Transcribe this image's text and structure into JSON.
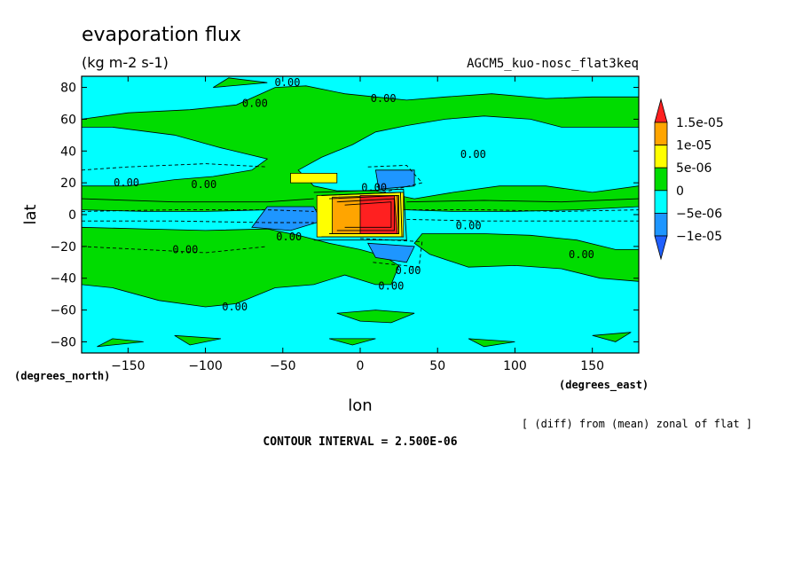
{
  "chart_data": {
    "type": "contour",
    "title": "evaporation flux",
    "units": "(kg m-2 s-1)",
    "experiment": "AGCM5_kuo-nosc_flat3keq",
    "xlabel": "lon",
    "ylabel": "lat",
    "xunits": "(degrees_east)",
    "yunits": "(degrees_north)",
    "xlim": [
      -180,
      180
    ],
    "ylim": [
      -87,
      87
    ],
    "xticks": [
      -150,
      -100,
      -50,
      0,
      50,
      100,
      150
    ],
    "xtick_labels": [
      "−150",
      "−100",
      "−50",
      "0",
      "50",
      "100",
      "150"
    ],
    "yticks": [
      -80,
      -60,
      -40,
      -20,
      0,
      20,
      40,
      60,
      80
    ],
    "ytick_labels": [
      "−80",
      "−60",
      "−40",
      "−20",
      "0",
      "20",
      "40",
      "60",
      "80"
    ],
    "note": "[ (diff) from (mean) zonal of flat ]",
    "contour_interval": "CONTOUR INTERVAL = 2.500E-06",
    "colorbar": {
      "labels": [
        "1.5e-05",
        "1e-05",
        "5e-06",
        "0",
        "−5e-06",
        "−1e-05"
      ],
      "colors": [
        "#ff2020",
        "#ffa500",
        "#ffff00",
        "#00dc00",
        "#00ffff",
        "#1e96ff",
        "#2060ff"
      ]
    },
    "contour_labels": [
      {
        "text": "0.00",
        "lon": -47,
        "lat": 83
      },
      {
        "text": "0.00",
        "lon": -68,
        "lat": 70
      },
      {
        "text": "0.00",
        "lon": 15,
        "lat": 73
      },
      {
        "text": "0.00",
        "lon": 73,
        "lat": 38
      },
      {
        "text": "0.00",
        "lon": -151,
        "lat": 20
      },
      {
        "text": "0.00",
        "lon": -101,
        "lat": 19
      },
      {
        "text": "0.00",
        "lon": 9,
        "lat": 17
      },
      {
        "text": "0.00",
        "lon": 70,
        "lat": -7
      },
      {
        "text": "0.00",
        "lon": -46,
        "lat": -14
      },
      {
        "text": "0.00",
        "lon": -113,
        "lat": -22
      },
      {
        "text": "0.00",
        "lon": 31,
        "lat": -35
      },
      {
        "text": "0.00",
        "lon": 20,
        "lat": -45
      },
      {
        "text": "0.00",
        "lon": 143,
        "lat": -25
      },
      {
        "text": "0.00",
        "lon": -81,
        "lat": -58
      }
    ],
    "regions": [
      {
        "level": "positive",
        "color": "#00dc00",
        "path": [
          [
            -180,
            60
          ],
          [
            -150,
            64
          ],
          [
            -110,
            66
          ],
          [
            -80,
            69
          ],
          [
            -55,
            80
          ],
          [
            -35,
            81
          ],
          [
            -10,
            76
          ],
          [
            10,
            74
          ],
          [
            30,
            72
          ],
          [
            55,
            74
          ],
          [
            85,
            76
          ],
          [
            120,
            73
          ],
          [
            150,
            74
          ],
          [
            180,
            74
          ],
          [
            180,
            55
          ],
          [
            130,
            55
          ],
          [
            110,
            60
          ],
          [
            80,
            62
          ],
          [
            55,
            60
          ],
          [
            30,
            56
          ],
          [
            10,
            52
          ],
          [
            -5,
            44
          ],
          [
            -25,
            36
          ],
          [
            -40,
            28
          ],
          [
            -30,
            18
          ],
          [
            -15,
            15
          ],
          [
            10,
            15
          ],
          [
            35,
            10
          ],
          [
            60,
            14
          ],
          [
            90,
            18
          ],
          [
            120,
            18
          ],
          [
            150,
            14
          ],
          [
            180,
            18
          ],
          [
            180,
            5
          ],
          [
            140,
            3
          ],
          [
            100,
            2
          ],
          [
            60,
            2
          ],
          [
            30,
            3
          ],
          [
            -25,
            3
          ],
          [
            -60,
            3
          ],
          [
            -100,
            2
          ],
          [
            -140,
            2
          ],
          [
            -180,
            3
          ],
          [
            -180,
            18
          ],
          [
            -150,
            18
          ],
          [
            -120,
            22
          ],
          [
            -95,
            24
          ],
          [
            -70,
            28
          ],
          [
            -60,
            35
          ],
          [
            -90,
            42
          ],
          [
            -120,
            50
          ],
          [
            -160,
            55
          ],
          [
            -180,
            55
          ]
        ]
      },
      {
        "level": "positive",
        "color": "#00dc00",
        "path": [
          [
            -180,
            -8
          ],
          [
            -140,
            -9
          ],
          [
            -100,
            -10
          ],
          [
            -60,
            -9
          ],
          [
            -40,
            -13
          ],
          [
            -20,
            -18
          ],
          [
            0,
            -22
          ],
          [
            15,
            -26
          ],
          [
            25,
            -32
          ],
          [
            20,
            -44
          ],
          [
            10,
            -44
          ],
          [
            -10,
            -38
          ],
          [
            -30,
            -44
          ],
          [
            -55,
            -46
          ],
          [
            -80,
            -56
          ],
          [
            -100,
            -58
          ],
          [
            -130,
            -54
          ],
          [
            -160,
            -46
          ],
          [
            -180,
            -44
          ]
        ]
      },
      {
        "level": "positive",
        "color": "#00dc00",
        "path": [
          [
            40,
            -12
          ],
          [
            80,
            -12
          ],
          [
            110,
            -13
          ],
          [
            140,
            -16
          ],
          [
            165,
            -22
          ],
          [
            180,
            -22
          ],
          [
            180,
            -42
          ],
          [
            155,
            -40
          ],
          [
            130,
            -34
          ],
          [
            100,
            -32
          ],
          [
            70,
            -33
          ],
          [
            45,
            -25
          ],
          [
            35,
            -18
          ]
        ]
      },
      {
        "level": "positive",
        "color": "#00dc00",
        "path": [
          [
            -15,
            -62
          ],
          [
            10,
            -60
          ],
          [
            35,
            -62
          ],
          [
            20,
            -68
          ],
          [
            0,
            -67
          ]
        ]
      },
      {
        "level": "positive",
        "color": "#00dc00",
        "path": [
          [
            -160,
            -78
          ],
          [
            -140,
            -80
          ],
          [
            -170,
            -83
          ]
        ]
      },
      {
        "level": "positive",
        "color": "#00dc00",
        "path": [
          [
            -120,
            -76
          ],
          [
            -90,
            -78
          ],
          [
            -110,
            -82
          ]
        ]
      },
      {
        "level": "positive",
        "color": "#00dc00",
        "path": [
          [
            -20,
            -78
          ],
          [
            10,
            -78
          ],
          [
            -5,
            -82
          ]
        ]
      },
      {
        "level": "positive",
        "color": "#00dc00",
        "path": [
          [
            70,
            -78
          ],
          [
            100,
            -80
          ],
          [
            80,
            -83
          ]
        ]
      },
      {
        "level": "positive",
        "color": "#00dc00",
        "path": [
          [
            150,
            -76
          ],
          [
            175,
            -74
          ],
          [
            165,
            -80
          ]
        ]
      },
      {
        "level": "positive",
        "color": "#00dc00",
        "path": [
          [
            -95,
            80
          ],
          [
            -60,
            83
          ],
          [
            -85,
            86
          ]
        ]
      },
      {
        "level": "negative",
        "color": "#1e96ff",
        "path": [
          [
            -60,
            5
          ],
          [
            -30,
            5
          ],
          [
            -25,
            -4
          ],
          [
            -45,
            -10
          ],
          [
            -70,
            -8
          ]
        ]
      },
      {
        "level": "negative",
        "color": "#1e96ff",
        "path": [
          [
            10,
            28
          ],
          [
            35,
            28
          ],
          [
            35,
            18
          ],
          [
            12,
            16
          ]
        ]
      },
      {
        "level": "negative",
        "color": "#1e96ff",
        "path": [
          [
            5,
            -18
          ],
          [
            35,
            -20
          ],
          [
            30,
            -30
          ],
          [
            10,
            -27
          ]
        ]
      },
      {
        "level": "5e-06",
        "color": "#ffff00",
        "path": [
          [
            -45,
            26
          ],
          [
            -15,
            26
          ],
          [
            -15,
            20
          ],
          [
            -45,
            20
          ]
        ]
      },
      {
        "level": "5e-06",
        "color": "#ffff00",
        "path": [
          [
            -28,
            12
          ],
          [
            28,
            14
          ],
          [
            28,
            -14
          ],
          [
            -28,
            -14
          ]
        ]
      },
      {
        "level": "1e-05",
        "color": "#ffa500",
        "path": [
          [
            -18,
            11
          ],
          [
            25,
            12
          ],
          [
            25,
            -12
          ],
          [
            -18,
            -12
          ]
        ]
      },
      {
        "level": "1.5e-05",
        "color": "#ff2020",
        "path": [
          [
            0,
            12
          ],
          [
            22,
            12
          ],
          [
            24,
            -12
          ],
          [
            0,
            -12
          ]
        ]
      }
    ],
    "contour_lines": [
      {
        "style": "dashed",
        "path": [
          [
            -180,
            28
          ],
          [
            -150,
            30
          ],
          [
            -100,
            32
          ],
          [
            -60,
            30
          ]
        ]
      },
      {
        "style": "dashed",
        "path": [
          [
            -180,
            -20
          ],
          [
            -140,
            -22
          ],
          [
            -100,
            -24
          ],
          [
            -60,
            -20
          ]
        ]
      },
      {
        "style": "dashed",
        "path": [
          [
            -180,
            2
          ],
          [
            -120,
            3
          ],
          [
            -60,
            3
          ],
          [
            -30,
            2
          ]
        ]
      },
      {
        "style": "dashed",
        "path": [
          [
            -180,
            -4
          ],
          [
            -120,
            -4
          ],
          [
            -60,
            -5
          ],
          [
            -30,
            -5
          ]
        ]
      },
      {
        "style": "dashed",
        "path": [
          [
            30,
            -3
          ],
          [
            80,
            -4
          ],
          [
            130,
            -4
          ],
          [
            180,
            -4
          ]
        ]
      },
      {
        "style": "dashed",
        "path": [
          [
            30,
            3
          ],
          [
            80,
            3
          ],
          [
            130,
            2
          ],
          [
            180,
            3
          ]
        ]
      },
      {
        "style": "dashed",
        "path": [
          [
            5,
            30
          ],
          [
            30,
            31
          ],
          [
            40,
            20
          ],
          [
            15,
            14
          ]
        ]
      },
      {
        "style": "dashed",
        "path": [
          [
            0,
            -15
          ],
          [
            40,
            -17
          ],
          [
            38,
            -33
          ],
          [
            8,
            -30
          ]
        ]
      },
      {
        "style": "solid",
        "path": [
          [
            -30,
            14
          ],
          [
            28,
            16
          ],
          [
            30,
            -16
          ],
          [
            -30,
            -16
          ]
        ]
      },
      {
        "style": "solid",
        "path": [
          [
            -25,
            12
          ],
          [
            26,
            14
          ],
          [
            27,
            -14
          ],
          [
            -25,
            -14
          ]
        ]
      },
      {
        "style": "solid",
        "path": [
          [
            -20,
            10
          ],
          [
            24,
            12
          ],
          [
            25,
            -12
          ],
          [
            -20,
            -12
          ]
        ]
      },
      {
        "style": "solid",
        "path": [
          [
            -15,
            8
          ],
          [
            22,
            10
          ],
          [
            22,
            -10
          ],
          [
            -15,
            -10
          ]
        ]
      },
      {
        "style": "solid",
        "path": [
          [
            -10,
            6
          ],
          [
            20,
            8
          ],
          [
            20,
            -8
          ],
          [
            -10,
            -8
          ]
        ]
      },
      {
        "style": "solid",
        "path": [
          [
            -180,
            10
          ],
          [
            -120,
            8
          ],
          [
            -60,
            8
          ],
          [
            -30,
            10
          ]
        ]
      },
      {
        "style": "solid",
        "path": [
          [
            30,
            8
          ],
          [
            80,
            9
          ],
          [
            130,
            8
          ],
          [
            180,
            10
          ]
        ]
      }
    ]
  }
}
